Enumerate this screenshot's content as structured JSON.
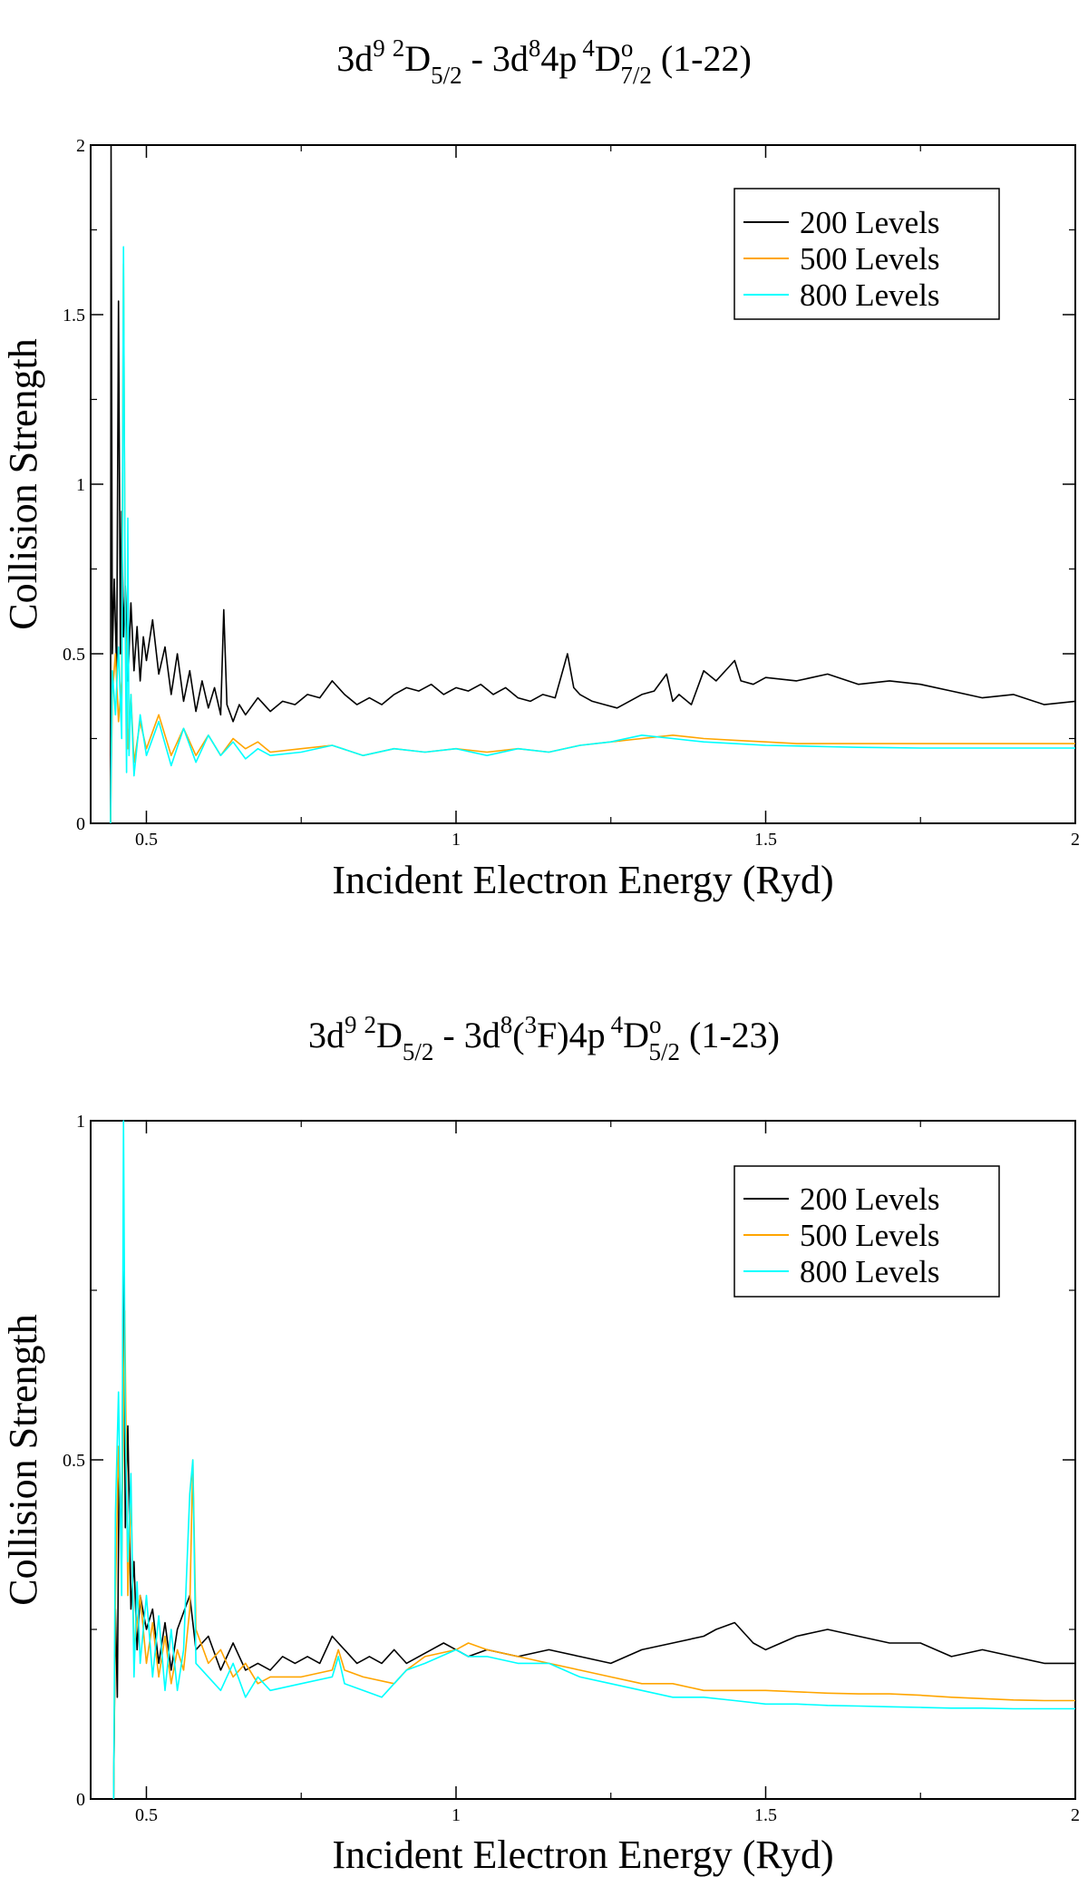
{
  "chart_data": [
    {
      "type": "line",
      "title_parts": {
        "lower_term": "3d",
        "lower_config_sup": "9",
        "lower_mult": "2",
        "lower_L": "D",
        "lower_J": "5/2",
        "dash": " - ",
        "upper_config": "3d",
        "upper_config_sup": "8",
        "upper_parent": "",
        "upper_parent_sup": "",
        "upper_parent_term": "",
        "upper_orbital": "4p",
        "upper_mult": "4",
        "upper_L": "D",
        "upper_parity": "o",
        "upper_J": "7/2",
        "index": " (1-22)"
      },
      "xlabel": "Incident Electron Energy (Ryd)",
      "ylabel": "Collision Strength",
      "xlim": [
        0.41,
        2.0
      ],
      "ylim": [
        0,
        2
      ],
      "x_ticks": [
        0.5,
        1,
        1.5,
        2
      ],
      "x_tick_labels": [
        "0.5",
        "1",
        "1.5",
        "2"
      ],
      "y_ticks": [
        0,
        0.5,
        1,
        1.5,
        2
      ],
      "y_tick_labels": [
        "0",
        "0.5",
        "1",
        "1.5",
        "2"
      ],
      "legend_position": "top-right",
      "series": [
        {
          "name": "200 Levels",
          "color": "#000000",
          "x": [
            0.442,
            0.443,
            0.445,
            0.448,
            0.452,
            0.455,
            0.458,
            0.46,
            0.463,
            0.466,
            0.47,
            0.475,
            0.48,
            0.485,
            0.49,
            0.495,
            0.5,
            0.51,
            0.52,
            0.53,
            0.54,
            0.55,
            0.56,
            0.57,
            0.58,
            0.59,
            0.6,
            0.61,
            0.62,
            0.625,
            0.63,
            0.64,
            0.65,
            0.66,
            0.68,
            0.7,
            0.72,
            0.74,
            0.76,
            0.78,
            0.8,
            0.81,
            0.82,
            0.84,
            0.86,
            0.88,
            0.9,
            0.92,
            0.94,
            0.96,
            0.98,
            1.0,
            1.02,
            1.04,
            1.06,
            1.08,
            1.1,
            1.12,
            1.14,
            1.16,
            1.18,
            1.19,
            1.2,
            1.22,
            1.24,
            1.26,
            1.28,
            1.3,
            1.32,
            1.34,
            1.35,
            1.36,
            1.38,
            1.4,
            1.42,
            1.44,
            1.45,
            1.46,
            1.48,
            1.5,
            1.55,
            1.6,
            1.65,
            1.7,
            1.75,
            1.8,
            1.85,
            1.9,
            1.95,
            2.0
          ],
          "y": [
            0.0,
            2.0,
            0.5,
            0.72,
            0.45,
            1.54,
            0.5,
            0.92,
            0.55,
            0.7,
            0.42,
            0.65,
            0.45,
            0.58,
            0.42,
            0.55,
            0.48,
            0.6,
            0.44,
            0.52,
            0.38,
            0.5,
            0.36,
            0.45,
            0.33,
            0.42,
            0.34,
            0.4,
            0.32,
            0.63,
            0.35,
            0.3,
            0.35,
            0.32,
            0.37,
            0.33,
            0.36,
            0.35,
            0.38,
            0.37,
            0.42,
            0.4,
            0.38,
            0.35,
            0.37,
            0.35,
            0.38,
            0.4,
            0.39,
            0.41,
            0.38,
            0.4,
            0.39,
            0.41,
            0.38,
            0.4,
            0.37,
            0.36,
            0.38,
            0.37,
            0.5,
            0.4,
            0.38,
            0.36,
            0.35,
            0.34,
            0.36,
            0.38,
            0.39,
            0.44,
            0.36,
            0.38,
            0.35,
            0.45,
            0.42,
            0.46,
            0.48,
            0.42,
            0.41,
            0.43,
            0.42,
            0.44,
            0.41,
            0.42,
            0.41,
            0.39,
            0.37,
            0.38,
            0.35,
            0.36
          ]
        },
        {
          "name": "500 Levels",
          "color": "#ffa500",
          "x": [
            0.442,
            0.445,
            0.45,
            0.455,
            0.46,
            0.463,
            0.466,
            0.47,
            0.475,
            0.48,
            0.49,
            0.5,
            0.52,
            0.54,
            0.56,
            0.58,
            0.6,
            0.62,
            0.64,
            0.66,
            0.68,
            0.7,
            0.75,
            0.8,
            0.85,
            0.9,
            0.95,
            1.0,
            1.05,
            1.1,
            1.15,
            1.2,
            1.25,
            1.3,
            1.35,
            1.4,
            1.45,
            1.5,
            1.55,
            1.6,
            1.65,
            1.7,
            1.75,
            1.8,
            1.85,
            1.9,
            1.95,
            2.0
          ],
          "y": [
            0.0,
            0.38,
            0.5,
            0.3,
            0.42,
            1.65,
            0.6,
            0.22,
            0.38,
            0.18,
            0.3,
            0.22,
            0.32,
            0.2,
            0.28,
            0.2,
            0.26,
            0.2,
            0.25,
            0.22,
            0.24,
            0.21,
            0.22,
            0.23,
            0.2,
            0.22,
            0.21,
            0.22,
            0.21,
            0.22,
            0.21,
            0.23,
            0.24,
            0.25,
            0.26,
            0.25,
            0.245,
            0.24,
            0.235,
            0.235,
            0.235,
            0.235,
            0.235,
            0.235,
            0.235,
            0.235,
            0.235,
            0.235
          ]
        },
        {
          "name": "800 Levels",
          "color": "#00ffff",
          "x": [
            0.442,
            0.445,
            0.45,
            0.455,
            0.46,
            0.463,
            0.466,
            0.468,
            0.47,
            0.472,
            0.475,
            0.48,
            0.49,
            0.5,
            0.52,
            0.54,
            0.56,
            0.58,
            0.6,
            0.62,
            0.64,
            0.66,
            0.68,
            0.7,
            0.75,
            0.8,
            0.85,
            0.9,
            0.95,
            1.0,
            1.05,
            1.1,
            1.15,
            1.2,
            1.25,
            1.3,
            1.35,
            1.4,
            1.45,
            1.5,
            1.55,
            1.6,
            1.65,
            1.7,
            1.75,
            1.8,
            1.85,
            1.9,
            1.95,
            2.0
          ],
          "y": [
            0.0,
            0.45,
            0.32,
            0.52,
            0.25,
            1.7,
            0.55,
            0.15,
            0.9,
            0.2,
            0.38,
            0.14,
            0.32,
            0.2,
            0.3,
            0.17,
            0.28,
            0.18,
            0.26,
            0.2,
            0.24,
            0.19,
            0.22,
            0.2,
            0.21,
            0.23,
            0.2,
            0.22,
            0.21,
            0.22,
            0.2,
            0.22,
            0.21,
            0.23,
            0.24,
            0.26,
            0.25,
            0.24,
            0.235,
            0.23,
            0.228,
            0.226,
            0.224,
            0.223,
            0.222,
            0.222,
            0.222,
            0.222,
            0.222,
            0.222
          ]
        }
      ]
    },
    {
      "type": "line",
      "title_parts": {
        "lower_term": "3d",
        "lower_config_sup": "9",
        "lower_mult": "2",
        "lower_L": "D",
        "lower_J": "5/2",
        "dash": " - ",
        "upper_config": "3d",
        "upper_config_sup": "8",
        "upper_parent": "(",
        "upper_parent_sup": "3",
        "upper_parent_term": "F)",
        "upper_orbital": "4p",
        "upper_mult": "4",
        "upper_L": "D",
        "upper_parity": "o",
        "upper_J": "5/2",
        "index": " (1-23)"
      },
      "xlabel": "Incident Electron Energy (Ryd)",
      "ylabel": "Collision Strength",
      "xlim": [
        0.41,
        2.0
      ],
      "ylim": [
        0,
        1
      ],
      "x_ticks": [
        0.5,
        1,
        1.5,
        2
      ],
      "x_tick_labels": [
        "0.5",
        "1",
        "1.5",
        "2"
      ],
      "y_ticks": [
        0,
        0.5,
        1
      ],
      "y_tick_labels": [
        "0",
        "0.5",
        "1"
      ],
      "legend_position": "top-right",
      "series": [
        {
          "name": "200 Levels",
          "color": "#000000",
          "x": [
            0.447,
            0.45,
            0.453,
            0.456,
            0.46,
            0.463,
            0.466,
            0.47,
            0.475,
            0.48,
            0.485,
            0.49,
            0.5,
            0.51,
            0.52,
            0.53,
            0.54,
            0.55,
            0.57,
            0.58,
            0.6,
            0.62,
            0.64,
            0.66,
            0.68,
            0.7,
            0.72,
            0.74,
            0.76,
            0.78,
            0.8,
            0.81,
            0.82,
            0.84,
            0.86,
            0.88,
            0.9,
            0.92,
            0.94,
            0.96,
            0.98,
            1.0,
            1.02,
            1.05,
            1.1,
            1.15,
            1.2,
            1.25,
            1.3,
            1.35,
            1.4,
            1.42,
            1.45,
            1.48,
            1.5,
            1.55,
            1.6,
            1.65,
            1.7,
            1.75,
            1.8,
            1.85,
            1.9,
            1.95,
            2.0
          ],
          "y": [
            0.0,
            0.28,
            0.15,
            0.5,
            0.35,
            0.82,
            0.4,
            0.55,
            0.28,
            0.35,
            0.22,
            0.3,
            0.25,
            0.28,
            0.2,
            0.26,
            0.19,
            0.25,
            0.3,
            0.22,
            0.24,
            0.19,
            0.23,
            0.19,
            0.2,
            0.19,
            0.21,
            0.2,
            0.21,
            0.2,
            0.24,
            0.23,
            0.22,
            0.2,
            0.21,
            0.2,
            0.22,
            0.2,
            0.21,
            0.22,
            0.23,
            0.22,
            0.21,
            0.22,
            0.21,
            0.22,
            0.21,
            0.2,
            0.22,
            0.23,
            0.24,
            0.25,
            0.26,
            0.23,
            0.22,
            0.24,
            0.25,
            0.24,
            0.23,
            0.23,
            0.21,
            0.22,
            0.21,
            0.2,
            0.2
          ]
        },
        {
          "name": "500 Levels",
          "color": "#ffa500",
          "x": [
            0.447,
            0.45,
            0.455,
            0.46,
            0.465,
            0.47,
            0.475,
            0.48,
            0.49,
            0.5,
            0.51,
            0.52,
            0.53,
            0.54,
            0.55,
            0.56,
            0.57,
            0.575,
            0.58,
            0.6,
            0.62,
            0.64,
            0.66,
            0.68,
            0.7,
            0.75,
            0.8,
            0.81,
            0.82,
            0.85,
            0.9,
            0.92,
            0.95,
            1.0,
            1.02,
            1.05,
            1.1,
            1.15,
            1.2,
            1.25,
            1.3,
            1.35,
            1.4,
            1.45,
            1.5,
            1.55,
            1.6,
            1.65,
            1.7,
            1.75,
            1.8,
            1.85,
            1.9,
            1.95,
            2.0
          ],
          "y": [
            0.0,
            0.3,
            0.52,
            0.35,
            0.72,
            0.3,
            0.45,
            0.22,
            0.3,
            0.2,
            0.26,
            0.18,
            0.24,
            0.17,
            0.22,
            0.19,
            0.28,
            0.5,
            0.25,
            0.2,
            0.22,
            0.18,
            0.2,
            0.17,
            0.18,
            0.18,
            0.19,
            0.22,
            0.19,
            0.18,
            0.17,
            0.19,
            0.21,
            0.22,
            0.23,
            0.22,
            0.21,
            0.2,
            0.19,
            0.18,
            0.17,
            0.17,
            0.16,
            0.16,
            0.16,
            0.158,
            0.156,
            0.155,
            0.155,
            0.153,
            0.15,
            0.148,
            0.146,
            0.145,
            0.145
          ]
        },
        {
          "name": "800 Levels",
          "color": "#00ffff",
          "x": [
            0.447,
            0.45,
            0.455,
            0.46,
            0.463,
            0.466,
            0.47,
            0.475,
            0.48,
            0.485,
            0.49,
            0.5,
            0.51,
            0.52,
            0.53,
            0.54,
            0.55,
            0.56,
            0.57,
            0.575,
            0.58,
            0.6,
            0.62,
            0.64,
            0.66,
            0.68,
            0.7,
            0.75,
            0.8,
            0.81,
            0.82,
            0.85,
            0.88,
            0.9,
            0.92,
            0.95,
            1.0,
            1.02,
            1.05,
            1.1,
            1.15,
            1.2,
            1.25,
            1.3,
            1.35,
            1.4,
            1.45,
            1.5,
            1.55,
            1.6,
            1.65,
            1.7,
            1.75,
            1.8,
            1.85,
            1.9,
            1.95,
            2.0
          ],
          "y": [
            0.0,
            0.42,
            0.6,
            0.3,
            1.0,
            0.55,
            0.35,
            0.48,
            0.18,
            0.32,
            0.2,
            0.3,
            0.18,
            0.27,
            0.16,
            0.25,
            0.16,
            0.22,
            0.45,
            0.5,
            0.2,
            0.18,
            0.16,
            0.2,
            0.15,
            0.18,
            0.16,
            0.17,
            0.18,
            0.21,
            0.17,
            0.16,
            0.15,
            0.17,
            0.19,
            0.2,
            0.22,
            0.21,
            0.21,
            0.2,
            0.2,
            0.18,
            0.17,
            0.16,
            0.15,
            0.15,
            0.145,
            0.14,
            0.14,
            0.138,
            0.137,
            0.136,
            0.135,
            0.134,
            0.134,
            0.133,
            0.133,
            0.133
          ]
        }
      ]
    }
  ]
}
